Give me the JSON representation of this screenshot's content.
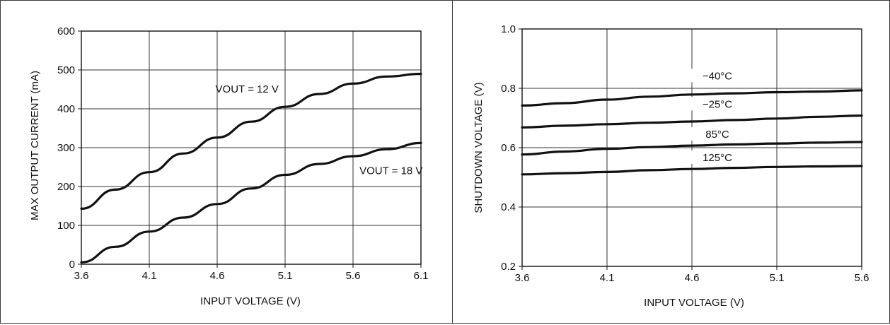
{
  "chart_data": [
    {
      "type": "line",
      "xlabel": "INPUT VOLTAGE (V)",
      "ylabel": "MAX OUTPUT CURRENT (mA)",
      "xlim": [
        3.6,
        6.1
      ],
      "ylim": [
        0,
        600
      ],
      "x_ticks": [
        3.6,
        4.1,
        4.6,
        5.1,
        5.6,
        6.1
      ],
      "x_tick_labels": [
        "3.6",
        "4.1",
        "4.6",
        "5.1",
        "5.6",
        "6.1"
      ],
      "y_ticks": [
        0,
        100,
        200,
        300,
        400,
        500,
        600
      ],
      "y_tick_labels": [
        "0",
        "100",
        "200",
        "300",
        "400",
        "500",
        "600"
      ],
      "grid": true,
      "series": [
        {
          "name": "VOUT = 12 V",
          "label_at": [
            4.82,
            442
          ],
          "x": [
            3.6,
            3.85,
            4.1,
            4.35,
            4.6,
            4.85,
            5.1,
            5.35,
            5.6,
            5.85,
            6.1
          ],
          "values": [
            143,
            192,
            237,
            285,
            326,
            367,
            405,
            438,
            465,
            483,
            490
          ]
        },
        {
          "name": "VOUT = 18 V",
          "label_at": [
            5.88,
            232
          ],
          "x": [
            3.6,
            3.85,
            4.1,
            4.35,
            4.6,
            4.85,
            5.1,
            5.35,
            5.6,
            5.85,
            6.1
          ],
          "values": [
            5,
            45,
            84,
            120,
            155,
            195,
            230,
            258,
            278,
            296,
            312
          ]
        }
      ]
    },
    {
      "type": "line",
      "xlabel": "INPUT VOLTAGE (V)",
      "ylabel": "SHUTDOWN VOLTAGE (V)",
      "xlim": [
        3.6,
        5.6
      ],
      "ylim": [
        0.2,
        1.0
      ],
      "x_ticks": [
        3.6,
        4.1,
        4.6,
        5.1,
        5.6
      ],
      "x_tick_labels": [
        "3.6",
        "4.1",
        "4.6",
        "5.1",
        "5.6"
      ],
      "y_ticks": [
        0.2,
        0.4,
        0.6,
        0.8,
        1.0
      ],
      "y_tick_labels": [
        "0.2",
        "0.4",
        "0.6",
        "0.8",
        "1.0"
      ],
      "grid": true,
      "series": [
        {
          "name": "−40°C",
          "label_at": [
            4.75,
            0.83
          ],
          "x": [
            3.6,
            3.85,
            4.1,
            4.35,
            4.6,
            4.85,
            5.1,
            5.35,
            5.6
          ],
          "values": [
            0.742,
            0.75,
            0.762,
            0.772,
            0.779,
            0.783,
            0.787,
            0.789,
            0.793
          ]
        },
        {
          "name": "−25°C",
          "label_at": [
            4.75,
            0.735
          ],
          "x": [
            3.6,
            3.85,
            4.1,
            4.35,
            4.6,
            4.85,
            5.1,
            5.35,
            5.6
          ],
          "values": [
            0.668,
            0.674,
            0.679,
            0.684,
            0.688,
            0.693,
            0.698,
            0.704,
            0.708
          ]
        },
        {
          "name": "85°C",
          "label_at": [
            4.75,
            0.633
          ],
          "x": [
            3.6,
            3.85,
            4.1,
            4.35,
            4.6,
            4.85,
            5.1,
            5.35,
            5.6
          ],
          "values": [
            0.577,
            0.587,
            0.596,
            0.602,
            0.607,
            0.611,
            0.614,
            0.617,
            0.619
          ]
        },
        {
          "name": "125°C",
          "label_at": [
            4.75,
            0.555
          ],
          "x": [
            3.6,
            3.85,
            4.1,
            4.35,
            4.6,
            4.85,
            5.1,
            5.35,
            5.6
          ],
          "values": [
            0.51,
            0.514,
            0.518,
            0.524,
            0.528,
            0.532,
            0.535,
            0.537,
            0.538
          ]
        }
      ]
    }
  ]
}
